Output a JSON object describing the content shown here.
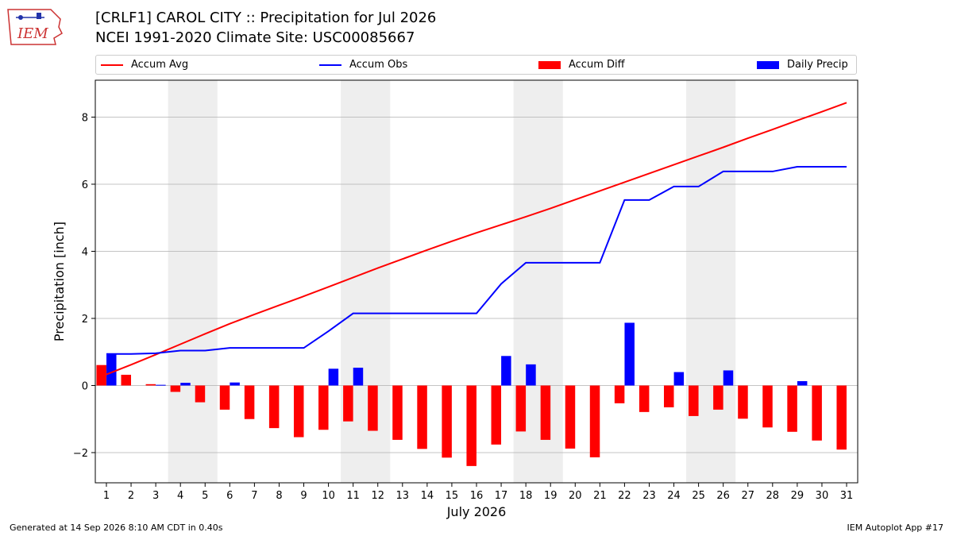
{
  "header": {
    "logo_text": "IEM",
    "title_line1": "[CRLF1] CAROL CITY :: Precipitation for Jul 2026",
    "title_line2": "NCEI 1991-2020 Climate Site: USC00085667"
  },
  "legend": [
    {
      "label": "Accum Avg",
      "kind": "line",
      "color": "#ff0000"
    },
    {
      "label": "Accum Obs",
      "kind": "line",
      "color": "#0000ff"
    },
    {
      "label": "Accum Diff",
      "kind": "bar",
      "color": "#ff0000"
    },
    {
      "label": "Daily Precip",
      "kind": "bar",
      "color": "#0000ff"
    }
  ],
  "footer": {
    "left": "Generated at 14 Sep 2026 8:10 AM CDT in 0.40s",
    "right": "IEM Autoplot App #17"
  },
  "chart_data": {
    "type": "bar",
    "xlabel": "July 2026",
    "ylabel": "Precipitation [inch]",
    "ylim": [
      -2.9,
      9.1
    ],
    "yticks": [
      -2,
      0,
      2,
      4,
      6,
      8
    ],
    "xlim": [
      0.55,
      31.45
    ],
    "grid": "horizontal",
    "legend_position": "top",
    "weekend_shading": [
      [
        3.5,
        5.5
      ],
      [
        10.5,
        12.5
      ],
      [
        17.5,
        19.5
      ],
      [
        24.5,
        26.5
      ]
    ],
    "categories": [
      "1",
      "2",
      "3",
      "4",
      "5",
      "6",
      "7",
      "8",
      "9",
      "10",
      "11",
      "12",
      "13",
      "14",
      "15",
      "16",
      "17",
      "18",
      "19",
      "20",
      "21",
      "22",
      "23",
      "24",
      "25",
      "26",
      "27",
      "28",
      "29",
      "30",
      "31"
    ],
    "series": [
      {
        "name": "Accum Avg",
        "type": "line",
        "color": "#ff0000",
        "values": [
          0.33,
          0.62,
          0.92,
          1.23,
          1.54,
          1.84,
          2.12,
          2.39,
          2.66,
          2.94,
          3.22,
          3.5,
          3.77,
          4.04,
          4.3,
          4.55,
          4.79,
          5.03,
          5.28,
          5.54,
          5.8,
          6.06,
          6.32,
          6.58,
          6.84,
          7.1,
          7.37,
          7.63,
          7.9,
          8.16,
          8.43
        ]
      },
      {
        "name": "Accum Obs",
        "type": "line",
        "color": "#0000ff",
        "values": [
          0.94,
          0.94,
          0.96,
          1.04,
          1.04,
          1.12,
          1.12,
          1.12,
          1.12,
          1.62,
          2.15,
          2.15,
          2.15,
          2.15,
          2.15,
          2.15,
          3.03,
          3.66,
          3.66,
          3.66,
          3.66,
          5.53,
          5.53,
          5.93,
          5.93,
          6.38,
          6.38,
          6.38,
          6.52,
          6.52,
          6.52
        ]
      },
      {
        "name": "Accum Diff",
        "type": "bar",
        "color": "#ff0000",
        "values": [
          0.61,
          0.32,
          0.04,
          -0.19,
          -0.5,
          -0.72,
          -1.0,
          -1.27,
          -1.54,
          -1.32,
          -1.07,
          -1.35,
          -1.62,
          -1.89,
          -2.15,
          -2.4,
          -1.76,
          -1.37,
          -1.62,
          -1.88,
          -2.14,
          -0.53,
          -0.79,
          -0.65,
          -0.91,
          -0.72,
          -0.99,
          -1.25,
          -1.38,
          -1.64,
          -1.91
        ]
      },
      {
        "name": "Daily Precip",
        "type": "bar",
        "color": "#0000ff",
        "values": [
          0.94,
          0.0,
          0.02,
          0.08,
          0.0,
          0.09,
          0.0,
          0.0,
          0.0,
          0.5,
          0.53,
          0.0,
          0.0,
          0.0,
          0.0,
          0.0,
          0.88,
          0.63,
          0.0,
          0.0,
          0.0,
          1.87,
          0.0,
          0.4,
          0.0,
          0.45,
          0.0,
          0.0,
          0.13,
          0.0,
          0.0
        ]
      }
    ]
  }
}
